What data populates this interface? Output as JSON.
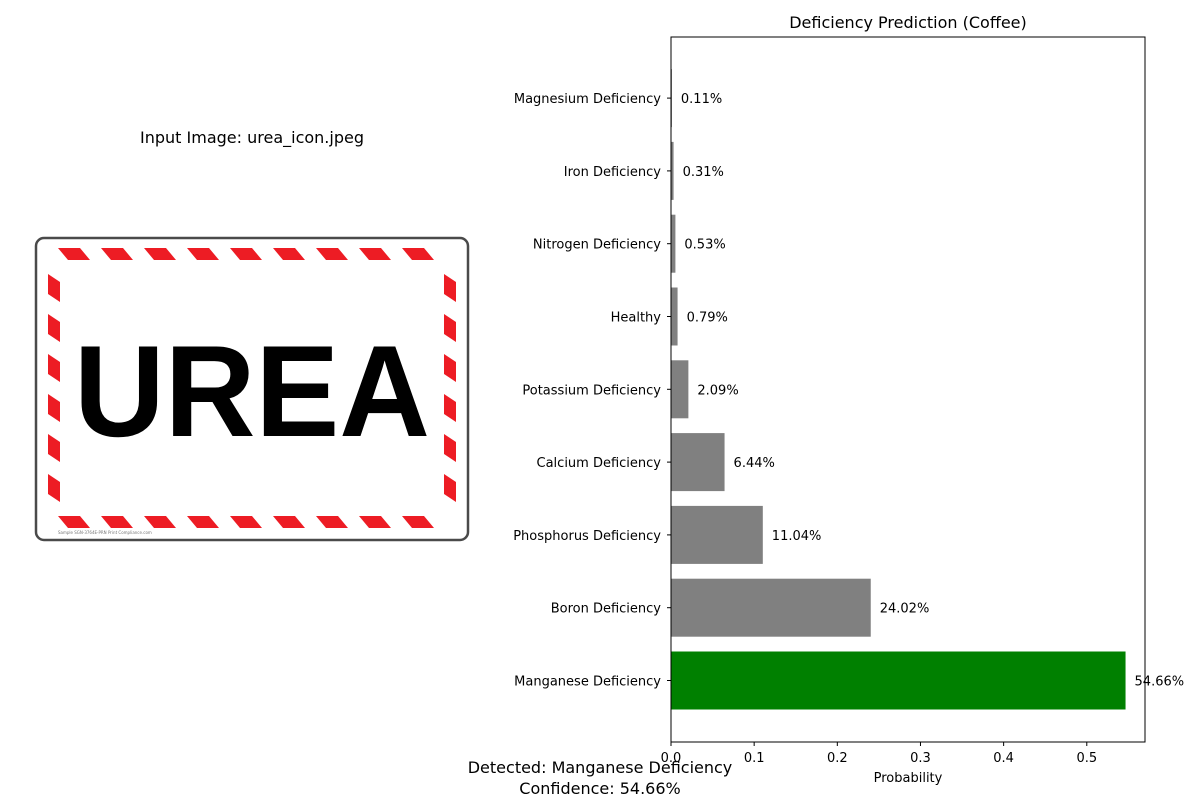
{
  "input_panel": {
    "title": "Input Image: urea_icon.jpeg",
    "sign_text": "UREA",
    "stripe_color": "#ed1c24",
    "fine_print": "Sample SGN-3764E-PRN Print Compliance.com"
  },
  "summary": {
    "detected": "Detected: Manganese Deficiency",
    "confidence": "Confidence: 54.66%"
  },
  "chart_data": {
    "type": "bar",
    "orientation": "horizontal",
    "title": "Deficiency Prediction (Coffee)",
    "xlabel": "Probability",
    "ylabel": "",
    "xlim": [
      0,
      0.57
    ],
    "xticks": [
      0,
      0.1,
      0.2,
      0.3,
      0.4,
      0.5
    ],
    "xtick_labels": [
      "0.0",
      "0.1",
      "0.2",
      "0.3",
      "0.4",
      "0.5"
    ],
    "grid": false,
    "categories": [
      "Manganese Deficiency",
      "Boron Deficiency",
      "Phosphorus Deficiency",
      "Calcium Deficiency",
      "Potassium Deficiency",
      "Healthy",
      "Nitrogen Deficiency",
      "Iron Deficiency",
      "Magnesium Deficiency"
    ],
    "values": [
      0.5466,
      0.2402,
      0.1104,
      0.0644,
      0.0209,
      0.0079,
      0.0053,
      0.0031,
      0.0011
    ],
    "value_labels": [
      "54.66%",
      "24.02%",
      "11.04%",
      "6.44%",
      "2.09%",
      "0.79%",
      "0.53%",
      "0.31%",
      "0.11%"
    ],
    "colors": {
      "highlight": "#008000",
      "default": "#808080"
    },
    "highlight_index": 0
  }
}
